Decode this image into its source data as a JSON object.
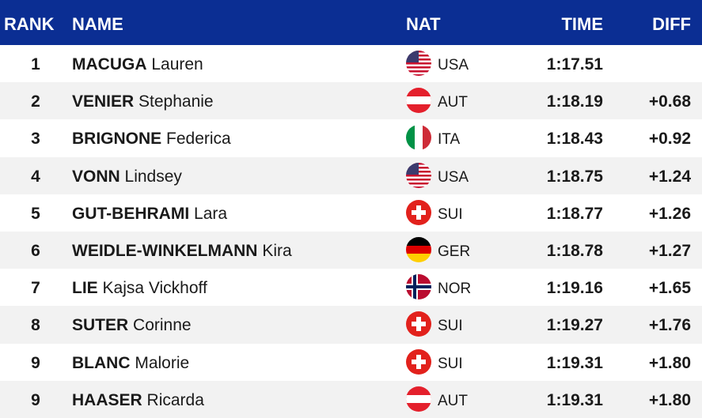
{
  "table": {
    "header": {
      "rank": "RANK",
      "name": "NAME",
      "nat": "NAT",
      "time": "TIME",
      "diff": "DIFF"
    },
    "rows": [
      {
        "rank": "1",
        "surname": "MACUGA",
        "given": "Lauren",
        "nat": "USA",
        "time": "1:17.51"
      },
      {
        "rank": "2",
        "surname": "VENIER",
        "given": "Stephanie",
        "nat": "AUT",
        "time": "1:18.19",
        "diff": "+0.68"
      },
      {
        "rank": "3",
        "surname": "BRIGNONE",
        "given": "Federica",
        "nat": "ITA",
        "time": "1:18.43",
        "diff": "+0.92"
      },
      {
        "rank": "4",
        "surname": "VONN",
        "given": "Lindsey",
        "nat": "USA",
        "time": "1:18.75",
        "diff": "+1.24"
      },
      {
        "rank": "5",
        "surname": "GUT-BEHRAMI",
        "given": "Lara",
        "nat": "SUI",
        "time": "1:18.77",
        "diff": "+1.26"
      },
      {
        "rank": "6",
        "surname": "WEIDLE-WINKELMANN",
        "given": "Kira",
        "nat": "GER",
        "time": "1:18.78",
        "diff": "+1.27"
      },
      {
        "rank": "7",
        "surname": "LIE",
        "given": "Kajsa Vickhoff",
        "nat": "NOR",
        "time": "1:19.16",
        "diff": "+1.65"
      },
      {
        "rank": "8",
        "surname": "SUTER",
        "given": "Corinne",
        "nat": "SUI",
        "time": "1:19.27",
        "diff": "+1.76"
      },
      {
        "rank": "9",
        "surname": "BLANC",
        "given": "Malorie",
        "nat": "SUI",
        "time": "1:19.31",
        "diff": "+1.80"
      },
      {
        "rank": "9",
        "surname": "HAASER",
        "given": "Ricarda",
        "nat": "AUT",
        "time": "1:19.31",
        "diff": "+1.80"
      }
    ]
  }
}
